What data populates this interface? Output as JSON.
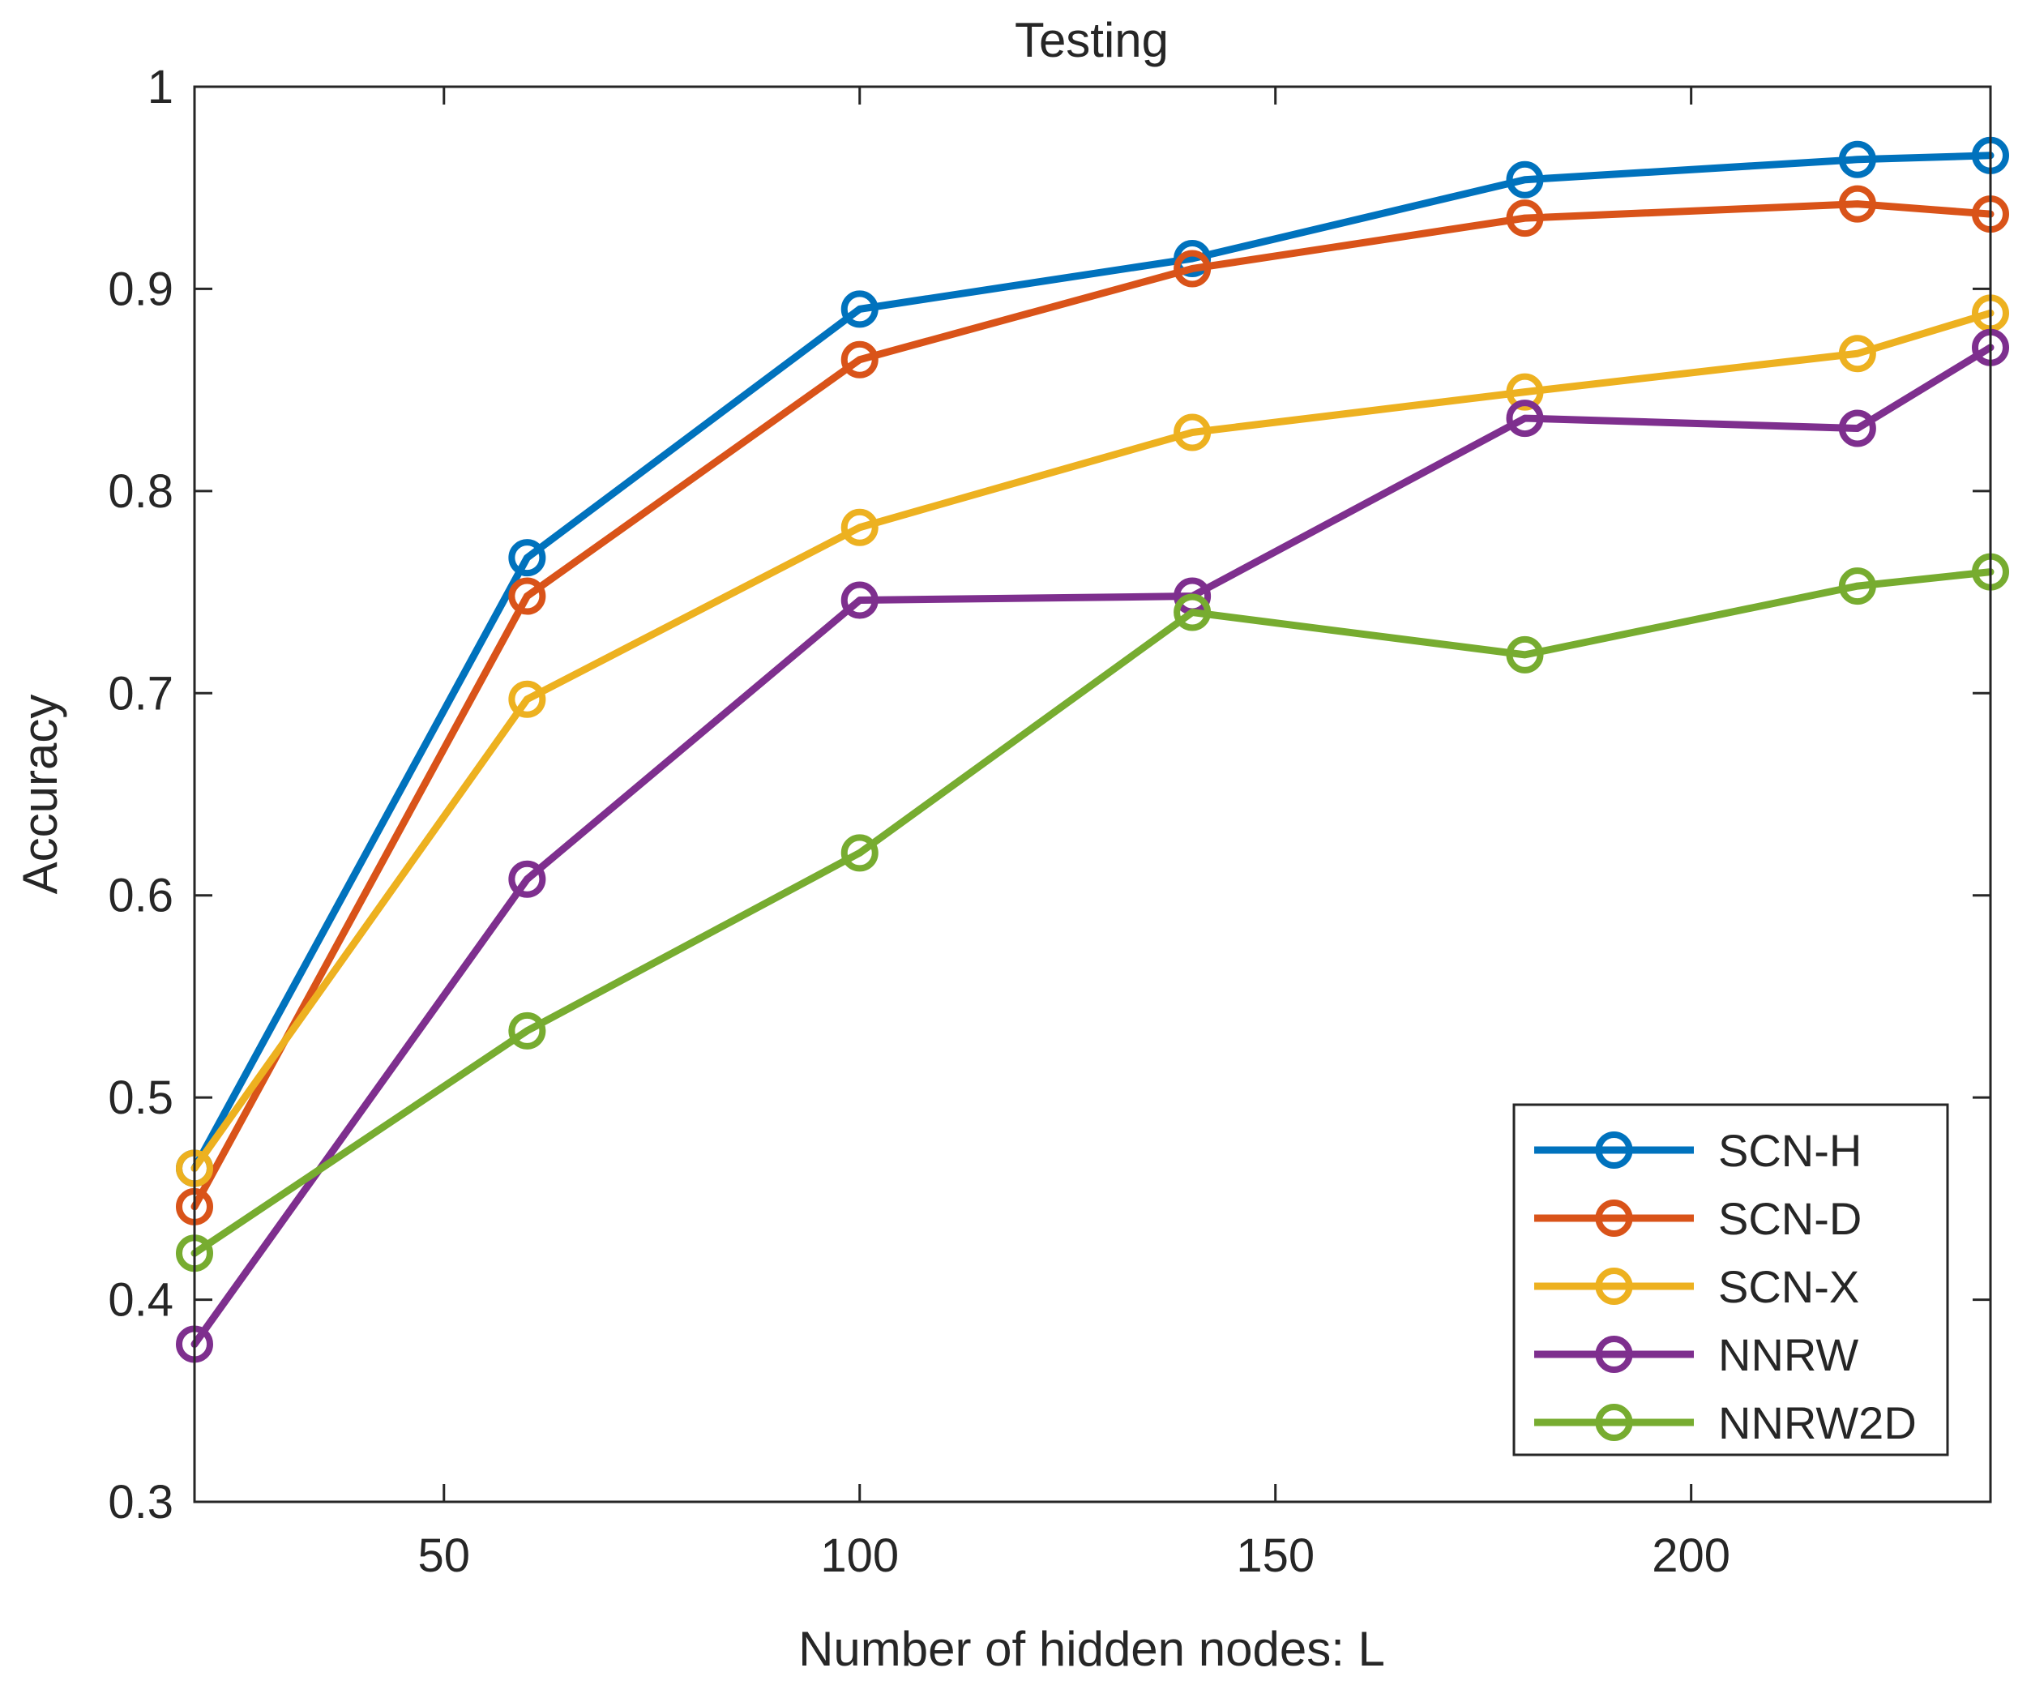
{
  "chart_data": {
    "type": "line",
    "title": "Testing",
    "xlabel": "Number of hidden nodes: L",
    "ylabel": "Accuracy",
    "xlim": [
      20,
      236
    ],
    "ylim": [
      0.3,
      1.0
    ],
    "xticks": [
      50,
      100,
      150,
      200
    ],
    "yticks": [
      0.3,
      0.4,
      0.5,
      0.6,
      0.7,
      0.8,
      0.9,
      1.0
    ],
    "ytick_labels": [
      "0.3",
      "0.4",
      "0.5",
      "0.6",
      "0.7",
      "0.8",
      "0.9",
      "1"
    ],
    "grid": false,
    "legend_position": "bottom-right",
    "x": [
      20,
      60,
      100,
      140,
      180,
      220,
      236
    ],
    "series": [
      {
        "name": "SCN-H",
        "color": "#0072BD",
        "values": [
          0.465,
          0.767,
          0.89,
          0.915,
          0.954,
          0.964,
          0.966
        ]
      },
      {
        "name": "SCN-D",
        "color": "#D95319",
        "values": [
          0.446,
          0.748,
          0.865,
          0.91,
          0.935,
          0.942,
          0.937
        ]
      },
      {
        "name": "SCN-X",
        "color": "#EDB120",
        "values": [
          0.465,
          0.697,
          0.782,
          0.829,
          0.849,
          0.868,
          0.888
        ]
      },
      {
        "name": "NNRW",
        "color": "#7E2F8E",
        "values": [
          0.378,
          0.608,
          0.746,
          0.748,
          0.836,
          0.831,
          0.871
        ]
      },
      {
        "name": "NNRW2D",
        "color": "#77AC30",
        "values": [
          0.423,
          0.533,
          0.621,
          0.74,
          0.719,
          0.753,
          0.76
        ]
      }
    ]
  }
}
